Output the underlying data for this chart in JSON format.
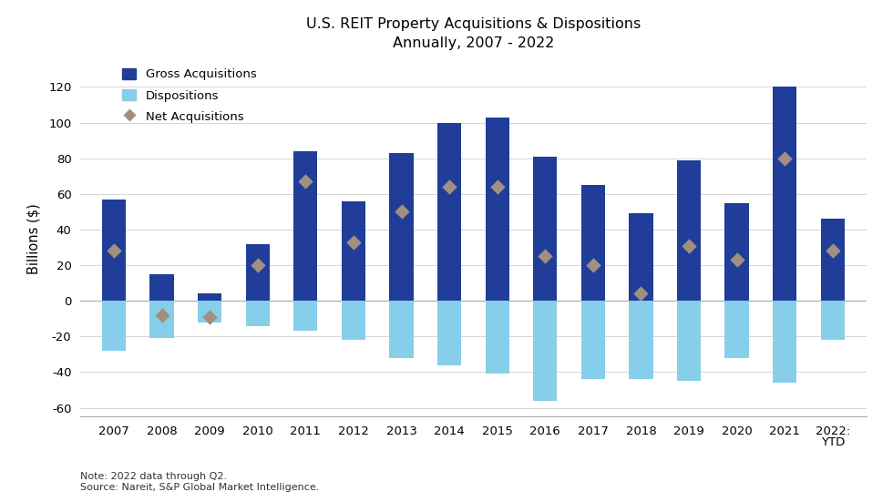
{
  "years": [
    "2007",
    "2008",
    "2009",
    "2010",
    "2011",
    "2012",
    "2013",
    "2014",
    "2015",
    "2016",
    "2017",
    "2018",
    "2019",
    "2020",
    "2021",
    "2022:\nYTD"
  ],
  "gross_acquisitions": [
    57,
    15,
    4,
    32,
    84,
    56,
    83,
    100,
    103,
    81,
    65,
    49,
    79,
    55,
    120,
    46
  ],
  "dispositions": [
    -28,
    -21,
    -12,
    -14,
    -17,
    -22,
    -32,
    -36,
    -41,
    -56,
    -44,
    -44,
    -45,
    -32,
    -46,
    -22
  ],
  "net_acquisitions": [
    28,
    -8,
    -9,
    20,
    67,
    33,
    50,
    64,
    64,
    25,
    20,
    4,
    31,
    23,
    80,
    28
  ],
  "gross_color": "#1f3d99",
  "disp_color": "#87ceeb",
  "net_color": "#a09080",
  "bg_color": "#ffffff",
  "title_line1": "U.S. REIT Property Acquisitions & Dispositions",
  "title_line2": "Annually, 2007 - 2022",
  "ylabel": "Billions ($)",
  "ylim": [
    -65,
    135
  ],
  "yticks": [
    -60,
    -40,
    -20,
    0,
    20,
    40,
    60,
    80,
    100,
    120
  ],
  "note": "Note: 2022 data through Q2.\nSource: Nareit, S&P Global Market Intelligence.",
  "legend_labels": [
    "Gross Acquisitions",
    "Dispositions",
    "Net Acquisitions"
  ]
}
